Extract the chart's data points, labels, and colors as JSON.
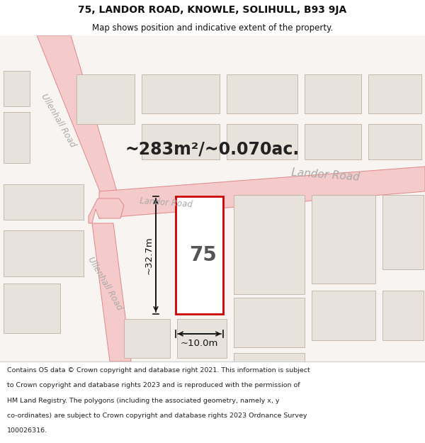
{
  "title": "75, LANDOR ROAD, KNOWLE, SOLIHULL, B93 9JA",
  "subtitle": "Map shows position and indicative extent of the property.",
  "area_text": "~283m²/~0.070ac.",
  "property_number": "75",
  "dim_width": "~10.0m",
  "dim_height": "~32.7m",
  "footer_lines": [
    "Contains OS data © Crown copyright and database right 2021. This information is subject",
    "to Crown copyright and database rights 2023 and is reproduced with the permission of",
    "HM Land Registry. The polygons (including the associated geometry, namely x, y",
    "co-ordinates) are subject to Crown copyright and database rights 2023 Ordnance Survey",
    "100026316."
  ],
  "map_bg": "#f7f4f1",
  "road_fill": "#f5caca",
  "road_edge": "#e08888",
  "building_fill": "#e8e2dc",
  "building_edge": "#c0b0a0",
  "prop_fill": "#ffffff",
  "prop_edge": "#cc0000",
  "text_dark": "#222222",
  "text_gray": "#888888",
  "road_label": "#aaaaaa",
  "dim_color": "#111111",
  "area_color": "#222222",
  "title_color": "#111111",
  "footer_color": "#222222"
}
